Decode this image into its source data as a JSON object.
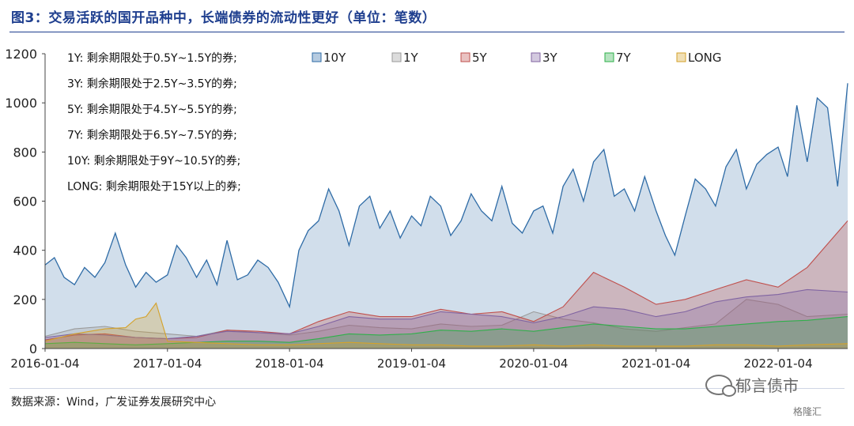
{
  "header": {
    "title": "图3：交易活跃的国开品种中，长端债券的流动性更好（单位：笔数）"
  },
  "footer": {
    "source": "数据来源：Wind，广发证券发展研究中心",
    "watermark": "郁言债市",
    "brand": "格隆汇"
  },
  "colors": {
    "title": "#1f3f8f",
    "10Y": "#2e6ba6",
    "1Y": "#9a9a9a",
    "5Y": "#c0504d",
    "3Y": "#8064a2",
    "7Y": "#2fb04a",
    "LONG": "#d4a22a"
  },
  "chart_data": {
    "type": "area",
    "ylim": [
      0,
      1200
    ],
    "yticks": [
      0,
      200,
      400,
      600,
      800,
      1000,
      1200
    ],
    "x_range": [
      "2016-01-04",
      "2022-07-31"
    ],
    "xtick_labels": [
      "2016-01-04",
      "2017-01-04",
      "2018-01-04",
      "2019-01-04",
      "2020-01-04",
      "2021-01-04",
      "2022-01-04"
    ],
    "legend": [
      "10Y",
      "1Y",
      "5Y",
      "3Y",
      "7Y",
      "LONG"
    ],
    "legend_position": "top",
    "grid": false,
    "annotations": [
      "1Y: 剩余期限处于0.5Y~1.5Y的券;",
      "3Y: 剩余期限处于2.5Y~3.5Y的券;",
      "5Y: 剩余期限处于4.5Y~5.5Y的券;",
      "7Y: 剩余期限处于6.5Y~7.5Y的券;",
      "10Y: 剩余期限处于9Y~10.5Y的券;",
      "LONG: 剩余期限处于15Y以上的券;"
    ],
    "series": [
      {
        "name": "10Y",
        "x": [
          "2016-01-04",
          "2016-02-01",
          "2016-03-01",
          "2016-04-01",
          "2016-05-01",
          "2016-06-01",
          "2016-07-01",
          "2016-08-01",
          "2016-09-01",
          "2016-10-01",
          "2016-11-01",
          "2016-12-01",
          "2017-01-04",
          "2017-02-01",
          "2017-03-01",
          "2017-04-01",
          "2017-05-01",
          "2017-06-01",
          "2017-07-01",
          "2017-08-01",
          "2017-09-01",
          "2017-10-01",
          "2017-11-01",
          "2017-12-01",
          "2018-01-04",
          "2018-02-01",
          "2018-03-01",
          "2018-04-01",
          "2018-05-01",
          "2018-06-01",
          "2018-07-01",
          "2018-08-01",
          "2018-09-01",
          "2018-10-01",
          "2018-11-01",
          "2018-12-01",
          "2019-01-04",
          "2019-02-01",
          "2019-03-01",
          "2019-04-01",
          "2019-05-01",
          "2019-06-01",
          "2019-07-01",
          "2019-08-01",
          "2019-09-01",
          "2019-10-01",
          "2019-11-01",
          "2019-12-01",
          "2020-01-04",
          "2020-02-01",
          "2020-03-01",
          "2020-04-01",
          "2020-05-01",
          "2020-06-01",
          "2020-07-01",
          "2020-08-01",
          "2020-09-01",
          "2020-10-01",
          "2020-11-01",
          "2020-12-01",
          "2021-01-04",
          "2021-02-01",
          "2021-03-01",
          "2021-04-01",
          "2021-05-01",
          "2021-06-01",
          "2021-07-01",
          "2021-08-01",
          "2021-09-01",
          "2021-10-01",
          "2021-11-01",
          "2021-12-01",
          "2022-01-04",
          "2022-02-01",
          "2022-03-01",
          "2022-04-01",
          "2022-05-01",
          "2022-06-01",
          "2022-07-01",
          "2022-07-31"
        ],
        "values": [
          340,
          370,
          290,
          260,
          330,
          290,
          350,
          470,
          340,
          250,
          310,
          270,
          300,
          420,
          370,
          290,
          360,
          260,
          440,
          280,
          300,
          360,
          330,
          270,
          170,
          400,
          480,
          520,
          650,
          560,
          420,
          580,
          620,
          490,
          560,
          450,
          540,
          500,
          620,
          580,
          460,
          520,
          630,
          560,
          520,
          660,
          510,
          470,
          560,
          580,
          470,
          660,
          730,
          600,
          760,
          810,
          620,
          650,
          560,
          700,
          560,
          460,
          380,
          540,
          690,
          650,
          580,
          740,
          810,
          650,
          750,
          790,
          820,
          700,
          990,
          760,
          1020,
          980,
          660,
          1080
        ],
        "baseline": []
      },
      {
        "name": "1Y",
        "x": [
          "2016-01-04",
          "2016-04-01",
          "2016-07-01",
          "2016-10-01",
          "2017-01-04",
          "2017-04-01",
          "2017-07-01",
          "2017-10-01",
          "2018-01-04",
          "2018-04-01",
          "2018-07-01",
          "2018-10-01",
          "2019-01-04",
          "2019-04-01",
          "2019-07-01",
          "2019-10-01",
          "2020-01-04",
          "2020-04-01",
          "2020-07-01",
          "2020-10-01",
          "2021-01-04",
          "2021-04-01",
          "2021-07-01",
          "2021-10-01",
          "2022-01-04",
          "2022-04-01",
          "2022-07-31"
        ],
        "values": [
          50,
          80,
          90,
          70,
          60,
          50,
          75,
          65,
          55,
          70,
          95,
          85,
          80,
          100,
          90,
          95,
          150,
          120,
          105,
          80,
          70,
          85,
          100,
          200,
          180,
          130,
          140
        ]
      },
      {
        "name": "5Y",
        "x": [
          "2016-01-04",
          "2016-04-01",
          "2016-07-01",
          "2016-10-01",
          "2017-01-04",
          "2017-04-01",
          "2017-07-01",
          "2017-10-01",
          "2018-01-04",
          "2018-04-01",
          "2018-07-01",
          "2018-10-01",
          "2019-01-04",
          "2019-04-01",
          "2019-07-01",
          "2019-10-01",
          "2020-01-04",
          "2020-04-01",
          "2020-07-01",
          "2020-10-01",
          "2021-01-04",
          "2021-04-01",
          "2021-07-01",
          "2021-10-01",
          "2022-01-04",
          "2022-04-01",
          "2022-07-31"
        ],
        "values": [
          35,
          55,
          60,
          45,
          40,
          45,
          75,
          70,
          60,
          110,
          150,
          130,
          130,
          160,
          140,
          150,
          110,
          170,
          310,
          250,
          180,
          200,
          240,
          280,
          250,
          330,
          520
        ]
      },
      {
        "name": "3Y",
        "x": [
          "2016-01-04",
          "2016-04-01",
          "2016-07-01",
          "2016-10-01",
          "2017-01-04",
          "2017-04-01",
          "2017-07-01",
          "2017-10-01",
          "2018-01-04",
          "2018-04-01",
          "2018-07-01",
          "2018-10-01",
          "2019-01-04",
          "2019-04-01",
          "2019-07-01",
          "2019-10-01",
          "2020-01-04",
          "2020-04-01",
          "2020-07-01",
          "2020-10-01",
          "2021-01-04",
          "2021-04-01",
          "2021-07-01",
          "2021-10-01",
          "2022-01-04",
          "2022-04-01",
          "2022-07-31"
        ],
        "values": [
          45,
          60,
          55,
          45,
          40,
          50,
          70,
          65,
          60,
          90,
          130,
          120,
          120,
          150,
          140,
          130,
          105,
          130,
          170,
          160,
          130,
          150,
          190,
          210,
          220,
          240,
          230
        ]
      },
      {
        "name": "7Y",
        "x": [
          "2016-01-04",
          "2016-04-01",
          "2016-07-01",
          "2016-10-01",
          "2017-01-04",
          "2017-04-01",
          "2017-07-01",
          "2017-10-01",
          "2018-01-04",
          "2018-04-01",
          "2018-07-01",
          "2018-10-01",
          "2019-01-04",
          "2019-04-01",
          "2019-07-01",
          "2019-10-01",
          "2020-01-04",
          "2020-04-01",
          "2020-07-01",
          "2020-10-01",
          "2021-01-04",
          "2021-04-01",
          "2021-07-01",
          "2021-10-01",
          "2022-01-04",
          "2022-04-01",
          "2022-07-31"
        ],
        "values": [
          20,
          25,
          20,
          15,
          20,
          25,
          30,
          30,
          25,
          40,
          60,
          55,
          60,
          75,
          70,
          80,
          70,
          85,
          100,
          90,
          80,
          80,
          90,
          100,
          110,
          115,
          130
        ]
      },
      {
        "name": "LONG",
        "x": [
          "2016-01-04",
          "2016-04-01",
          "2016-07-01",
          "2016-09-01",
          "2016-10-01",
          "2016-11-01",
          "2016-12-01",
          "2017-01-04",
          "2017-04-01",
          "2017-07-01",
          "2017-10-01",
          "2018-01-04",
          "2018-04-01",
          "2018-07-01",
          "2018-10-01",
          "2019-01-04",
          "2019-04-01",
          "2019-07-01",
          "2019-10-01",
          "2020-01-04",
          "2020-04-01",
          "2020-07-01",
          "2020-10-01",
          "2021-01-04",
          "2021-04-01",
          "2021-07-01",
          "2021-10-01",
          "2022-01-04",
          "2022-04-01",
          "2022-07-31"
        ],
        "values": [
          30,
          60,
          80,
          85,
          120,
          130,
          185,
          30,
          25,
          20,
          15,
          15,
          20,
          25,
          20,
          15,
          15,
          10,
          10,
          15,
          10,
          15,
          10,
          10,
          10,
          15,
          15,
          10,
          15,
          20
        ]
      }
    ]
  }
}
